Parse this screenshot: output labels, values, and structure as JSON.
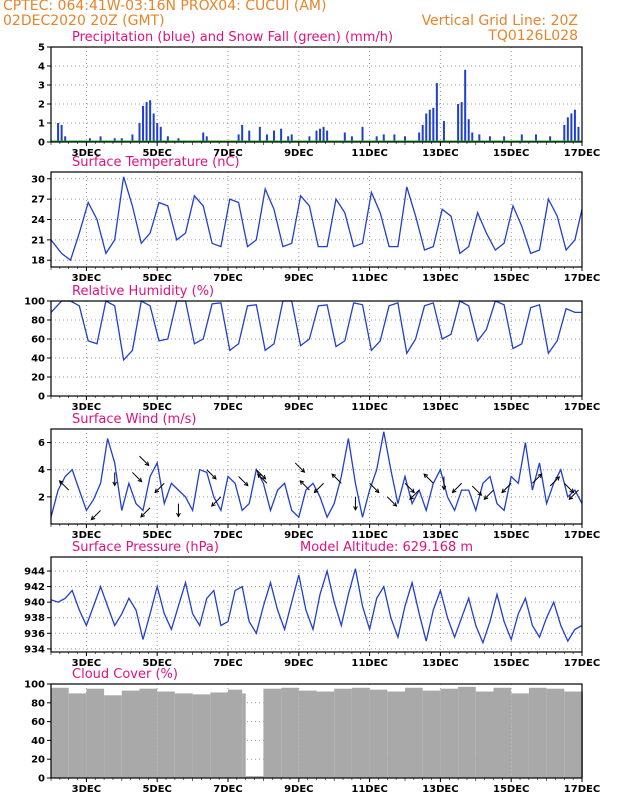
{
  "header": {
    "line1_left": "CPTEC:   064:41W-03:16N   PROX04: CUCUI (AM)",
    "line2_left": "02DEC2020 20Z (GMT)",
    "line2_right": "Vertical Grid Line: 20Z",
    "line3_right": "TQ0126L028"
  },
  "colors": {
    "title": "#e0117f",
    "header": "#e6842a",
    "series_line": "#1f3fd0",
    "snow": "#22aa22",
    "cloud": "#a9a9a9"
  },
  "x_labels": [
    "3DEC",
    "5DEC",
    "7DEC",
    "9DEC",
    "11DEC",
    "13DEC",
    "15DEC",
    "17DEC"
  ],
  "chart_data": [
    {
      "type": "bar",
      "title": "Precipitation (blue) and Snow Fall (green) (mm/h)",
      "ylim": [
        0,
        5
      ],
      "yticks": [
        0,
        1,
        2,
        3,
        4,
        5
      ],
      "xlim_days": [
        2.0,
        17.0
      ],
      "series": [
        {
          "name": "Precipitation",
          "x_days": [
            2.2,
            2.3,
            2.4,
            3.1,
            3.4,
            3.8,
            4.0,
            4.3,
            4.5,
            4.6,
            4.7,
            4.8,
            4.9,
            5.0,
            5.1,
            5.3,
            5.6,
            6.3,
            6.4,
            7.3,
            7.4,
            7.6,
            7.9,
            8.1,
            8.3,
            8.5,
            8.7,
            8.8,
            9.3,
            9.5,
            9.6,
            9.7,
            9.8,
            10.3,
            10.5,
            10.8,
            11.2,
            11.4,
            11.7,
            12.0,
            12.4,
            12.5,
            12.6,
            12.7,
            12.8,
            12.9,
            13.1,
            13.5,
            13.6,
            13.7,
            13.8,
            13.9,
            14.1,
            14.4,
            14.8,
            15.3,
            15.7,
            16.1,
            16.5,
            16.6,
            16.7,
            16.8,
            16.9
          ],
          "values": [
            1.0,
            0.9,
            0.3,
            0.2,
            0.3,
            0.2,
            0.2,
            0.4,
            1.0,
            1.9,
            2.1,
            2.2,
            1.5,
            1.0,
            0.8,
            0.3,
            0.2,
            0.5,
            0.3,
            0.4,
            0.9,
            0.6,
            0.8,
            0.4,
            0.6,
            0.7,
            0.3,
            0.4,
            0.3,
            0.6,
            0.7,
            0.8,
            0.6,
            0.5,
            0.3,
            0.8,
            0.3,
            0.4,
            0.4,
            0.3,
            0.5,
            0.9,
            1.5,
            1.7,
            1.8,
            3.1,
            1.1,
            2.0,
            2.1,
            3.8,
            1.2,
            0.5,
            0.4,
            0.3,
            0.3,
            0.4,
            0.4,
            0.3,
            0.9,
            1.3,
            1.5,
            1.7,
            0.8
          ]
        },
        {
          "name": "Snow Fall",
          "x_days": [
            2.0,
            17.0
          ],
          "values": [
            0,
            0
          ]
        }
      ]
    },
    {
      "type": "line",
      "title": "Surface Temperature (nC)",
      "ylim": [
        17,
        31
      ],
      "yticks": [
        18,
        21,
        24,
        27,
        30
      ],
      "xlim_days": [
        2.0,
        17.0
      ],
      "x_days": [
        2.0,
        2.3,
        2.55,
        2.8,
        3.05,
        3.3,
        3.55,
        3.8,
        4.05,
        4.3,
        4.55,
        4.8,
        5.05,
        5.3,
        5.55,
        5.8,
        6.05,
        6.3,
        6.55,
        6.8,
        7.05,
        7.3,
        7.55,
        7.8,
        8.05,
        8.3,
        8.55,
        8.8,
        9.05,
        9.3,
        9.55,
        9.8,
        10.05,
        10.3,
        10.55,
        10.8,
        11.05,
        11.3,
        11.55,
        11.8,
        12.05,
        12.3,
        12.55,
        12.8,
        13.05,
        13.3,
        13.55,
        13.8,
        14.05,
        14.3,
        14.55,
        14.8,
        15.05,
        15.3,
        15.55,
        15.8,
        16.05,
        16.3,
        16.55,
        16.8,
        17.0
      ],
      "values": [
        21.0,
        19.0,
        18.0,
        22.0,
        26.5,
        24.0,
        19.0,
        21.0,
        30.3,
        26.0,
        20.5,
        22.0,
        26.5,
        26.0,
        21.0,
        22.0,
        27.5,
        26.0,
        20.5,
        20.0,
        27.0,
        26.5,
        20.0,
        21.0,
        28.5,
        25.5,
        20.0,
        20.5,
        27.5,
        26.0,
        20.0,
        20.0,
        27.0,
        25.0,
        20.0,
        20.5,
        28.0,
        25.0,
        20.0,
        20.0,
        28.8,
        24.5,
        19.5,
        20.0,
        25.5,
        24.5,
        19.0,
        20.0,
        25.0,
        22.0,
        19.5,
        20.5,
        26.0,
        23.0,
        19.0,
        19.5,
        27.0,
        24.5,
        19.5,
        21.0,
        25.5
      ]
    },
    {
      "type": "line",
      "title": "Relative Humidity (%)",
      "ylim": [
        0,
        100
      ],
      "yticks": [
        0,
        20,
        40,
        60,
        80,
        100
      ],
      "xlim_days": [
        2.0,
        17.0
      ],
      "x_days": [
        2.0,
        2.3,
        2.55,
        2.8,
        3.05,
        3.3,
        3.55,
        3.8,
        4.05,
        4.3,
        4.55,
        4.8,
        5.05,
        5.3,
        5.55,
        5.8,
        6.05,
        6.3,
        6.55,
        6.8,
        7.05,
        7.3,
        7.55,
        7.8,
        8.05,
        8.3,
        8.55,
        8.8,
        9.05,
        9.3,
        9.55,
        9.8,
        10.05,
        10.3,
        10.55,
        10.8,
        11.05,
        11.3,
        11.55,
        11.8,
        12.05,
        12.3,
        12.55,
        12.8,
        13.05,
        13.3,
        13.55,
        13.8,
        14.05,
        14.3,
        14.55,
        14.8,
        15.05,
        15.3,
        15.55,
        15.8,
        16.05,
        16.3,
        16.55,
        16.8,
        17.0
      ],
      "values": [
        88,
        100,
        100,
        95,
        58,
        55,
        100,
        95,
        38,
        48,
        100,
        95,
        58,
        60,
        100,
        100,
        55,
        60,
        97,
        98,
        48,
        55,
        95,
        96,
        48,
        55,
        100,
        100,
        53,
        60,
        95,
        96,
        52,
        58,
        98,
        96,
        48,
        58,
        95,
        98,
        45,
        60,
        95,
        98,
        60,
        65,
        100,
        95,
        58,
        70,
        100,
        96,
        50,
        55,
        93,
        96,
        45,
        58,
        92,
        88,
        88
      ]
    },
    {
      "type": "line",
      "title": "Surface Wind (m/s)",
      "ylim": [
        0,
        7
      ],
      "yticks": [
        2,
        4,
        6
      ],
      "xlim_days": [
        2.0,
        17.0
      ],
      "x_days": [
        2.0,
        2.2,
        2.4,
        2.6,
        2.8,
        3.0,
        3.2,
        3.4,
        3.6,
        3.8,
        4.0,
        4.2,
        4.4,
        4.6,
        4.8,
        5.0,
        5.2,
        5.4,
        5.6,
        5.8,
        6.0,
        6.2,
        6.4,
        6.6,
        6.8,
        7.0,
        7.2,
        7.4,
        7.6,
        7.8,
        8.0,
        8.2,
        8.4,
        8.6,
        8.8,
        9.0,
        9.2,
        9.4,
        9.6,
        9.8,
        10.0,
        10.2,
        10.4,
        10.6,
        10.8,
        11.0,
        11.2,
        11.4,
        11.6,
        11.8,
        12.0,
        12.2,
        12.4,
        12.6,
        12.8,
        13.0,
        13.2,
        13.4,
        13.6,
        13.8,
        14.0,
        14.2,
        14.4,
        14.6,
        14.8,
        15.0,
        15.2,
        15.4,
        15.6,
        15.8,
        16.0,
        16.2,
        16.4,
        16.6,
        16.8,
        17.0
      ],
      "values": [
        0.5,
        2.5,
        3.5,
        4.0,
        2.5,
        1.0,
        1.8,
        3.0,
        6.3,
        4.5,
        1.0,
        3.0,
        1.5,
        1.0,
        3.5,
        4.5,
        1.5,
        3.0,
        2.5,
        2.0,
        1.0,
        4.0,
        3.8,
        2.0,
        1.0,
        3.5,
        3.0,
        1.0,
        1.5,
        4.0,
        3.0,
        1.0,
        2.5,
        3.0,
        1.0,
        0.5,
        2.5,
        3.0,
        2.0,
        0.5,
        1.5,
        3.5,
        6.3,
        3.0,
        0.5,
        2.5,
        4.0,
        6.8,
        4.0,
        1.5,
        3.5,
        1.5,
        2.5,
        1.0,
        3.0,
        4.0,
        2.0,
        1.0,
        2.5,
        2.5,
        1.0,
        3.0,
        3.5,
        1.5,
        1.0,
        3.5,
        3.0,
        6.0,
        2.5,
        4.5,
        1.5,
        3.0,
        4.0,
        2.0,
        2.5,
        1.5
      ]
    },
    {
      "type": "line",
      "title": "Surface Pressure (hPa)",
      "annotation": "Model Altitude: 629.168  m",
      "ylim": [
        933.6,
        945.8
      ],
      "yticks": [
        934,
        936,
        938,
        940,
        942,
        944
      ],
      "xlim_days": [
        2.0,
        17.0
      ],
      "x_days": [
        2.0,
        2.2,
        2.4,
        2.6,
        2.8,
        3.0,
        3.2,
        3.4,
        3.6,
        3.8,
        4.0,
        4.2,
        4.4,
        4.6,
        4.8,
        5.0,
        5.2,
        5.4,
        5.6,
        5.8,
        6.0,
        6.2,
        6.4,
        6.6,
        6.8,
        7.0,
        7.2,
        7.4,
        7.6,
        7.8,
        8.0,
        8.2,
        8.4,
        8.6,
        8.8,
        9.0,
        9.2,
        9.4,
        9.6,
        9.8,
        10.0,
        10.2,
        10.4,
        10.6,
        10.8,
        11.0,
        11.2,
        11.4,
        11.6,
        11.8,
        12.0,
        12.2,
        12.4,
        12.6,
        12.8,
        13.0,
        13.2,
        13.4,
        13.6,
        13.8,
        14.0,
        14.2,
        14.4,
        14.6,
        14.8,
        15.0,
        15.2,
        15.4,
        15.6,
        15.8,
        16.0,
        16.2,
        16.4,
        16.6,
        16.8,
        17.0
      ],
      "values": [
        940.3,
        940.0,
        940.5,
        941.5,
        939.0,
        937.0,
        939.5,
        942.0,
        939.5,
        937.0,
        938.5,
        940.5,
        939.0,
        935.2,
        938.5,
        942.0,
        938.5,
        936.5,
        939.5,
        942.5,
        938.5,
        937.0,
        940.5,
        941.5,
        937.0,
        937.5,
        941.5,
        942.0,
        937.5,
        936.0,
        939.5,
        942.5,
        939.0,
        936.5,
        940.0,
        943.5,
        939.0,
        936.5,
        941.0,
        944.0,
        940.0,
        937.0,
        941.0,
        944.3,
        939.5,
        936.5,
        940.5,
        942.0,
        938.0,
        935.5,
        939.5,
        942.5,
        938.5,
        935.0,
        939.0,
        941.5,
        938.0,
        935.5,
        938.0,
        940.5,
        937.0,
        934.8,
        937.5,
        941.0,
        937.5,
        935.2,
        938.5,
        940.5,
        937.0,
        935.5,
        938.0,
        940.0,
        937.0,
        935.0,
        936.5,
        937.0
      ]
    },
    {
      "type": "bar",
      "title": "Cloud Cover (%)",
      "ylim": [
        0,
        100
      ],
      "yticks": [
        0,
        20,
        40,
        60,
        80,
        100
      ],
      "xlim_days": [
        2.0,
        17.0
      ],
      "x_days": [
        2.0,
        2.5,
        3.0,
        3.5,
        4.0,
        4.5,
        5.0,
        5.5,
        6.0,
        6.5,
        7.0,
        7.4,
        7.5,
        8.0,
        8.5,
        9.0,
        9.5,
        10.0,
        10.5,
        11.0,
        11.5,
        12.0,
        12.5,
        13.0,
        13.5,
        14.0,
        14.5,
        15.0,
        15.5,
        16.0,
        16.5,
        17.0
      ],
      "values": [
        96,
        90,
        95,
        88,
        93,
        95,
        92,
        90,
        89,
        91,
        94,
        90,
        2,
        95,
        96,
        93,
        92,
        95,
        96,
        94,
        92,
        96,
        93,
        95,
        97,
        92,
        96,
        90,
        96,
        95,
        92,
        92
      ]
    }
  ]
}
